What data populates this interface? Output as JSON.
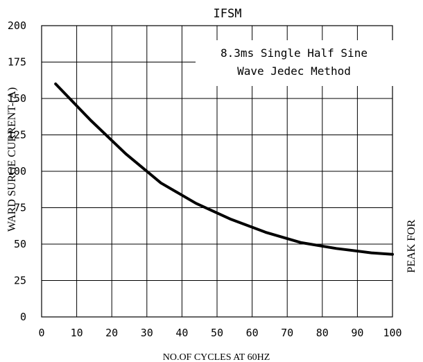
{
  "chart_data": {
    "type": "line",
    "title": "IFSM",
    "annotation": [
      "8.3ms Single Half Sine",
      "Wave Jedec Method"
    ],
    "xlabel": "NO.OF CYCLES AT 60HZ",
    "ylabel": "PEAK FORWARD SURGE CURRENT-(A)",
    "ylabel_visible_left": "WARD SURGE CURRENT-(A)",
    "ylabel_visible_right": "PEAK FOR",
    "xlim": [
      0,
      100
    ],
    "ylim": [
      0,
      200
    ],
    "x_ticks": [
      "0",
      "10",
      "20",
      "30",
      "40",
      "50",
      "60",
      "70",
      "80",
      "90",
      "100"
    ],
    "y_ticks": [
      "0",
      "25",
      "50",
      "75",
      "100",
      "125",
      "150",
      "175",
      "200"
    ],
    "grid": true,
    "line_color": "#000000",
    "series": [
      {
        "x": [
          4,
          14,
          24,
          34,
          44,
          54,
          64,
          74,
          84,
          94,
          100
        ],
        "values": [
          160,
          135,
          112,
          92,
          78,
          67,
          58,
          51,
          47,
          44,
          43
        ]
      }
    ]
  }
}
